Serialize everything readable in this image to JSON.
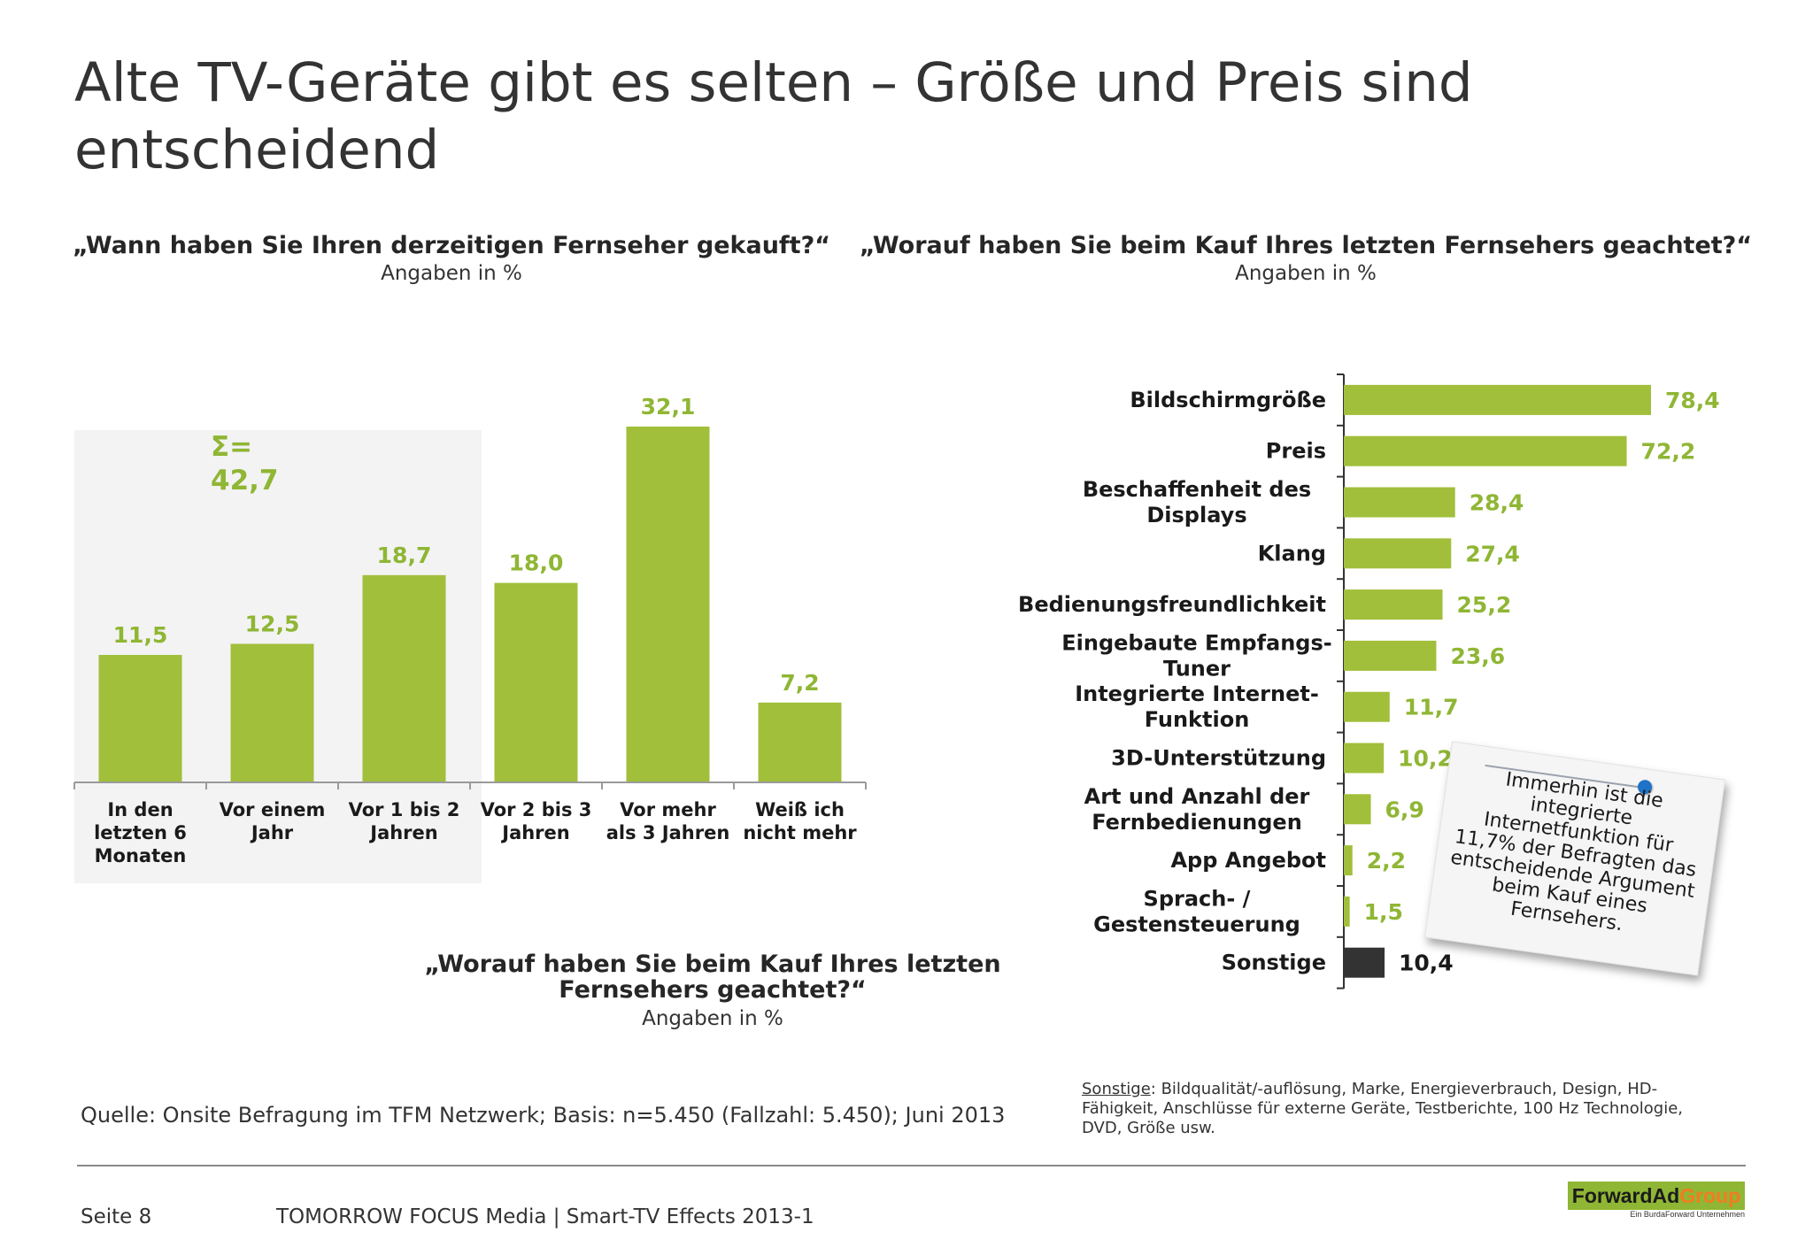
{
  "title": "Alte TV-Geräte gibt es selten – Größe und Preis sind entscheidend",
  "colors": {
    "bar": "#a1bf3a",
    "label": "#8fb634",
    "sonstige": "#333333",
    "highlight_bg": "#f3f3f3"
  },
  "left_chart": {
    "question": "„Wann haben Sie Ihren derzeitigen Fernseher gekauft?“",
    "subtitle": "Angaben in %",
    "sum_label": "Σ=",
    "sum_value": "42,7",
    "value_labels": [
      "11,5",
      "12,5",
      "18,7",
      "18,0",
      "32,1",
      "7,2"
    ],
    "category_lines": [
      [
        "In den",
        "letzten 6",
        "Monaten"
      ],
      [
        "Vor einem",
        "Jahr"
      ],
      [
        "Vor 1 bis 2",
        "Jahren"
      ],
      [
        "Vor 2 bis 3",
        "Jahren"
      ],
      [
        "Vor mehr",
        "als 3 Jahren"
      ],
      [
        "Weiß ich",
        "nicht mehr"
      ]
    ]
  },
  "right_chart": {
    "question": "„Worauf haben Sie beim Kauf Ihres letzten Fernsehers geachtet?“",
    "subtitle": "Angaben in %",
    "value_labels": [
      "78,4",
      "72,2",
      "28,4",
      "27,4",
      "25,2",
      "23,6",
      "11,7",
      "10,2",
      "6,9",
      "2,2",
      "1,5",
      "10,4"
    ],
    "category_lines": [
      [
        "Bildschirmgröße"
      ],
      [
        "Preis"
      ],
      [
        "Beschaffenheit des",
        "Displays"
      ],
      [
        "Klang"
      ],
      [
        "Bedienungsfreundlichkeit"
      ],
      [
        "Eingebaute Empfangs-",
        "Tuner"
      ],
      [
        "Integrierte Internet-",
        "Funktion"
      ],
      [
        "3D-Unterstützung"
      ],
      [
        "Art und Anzahl der",
        "Fernbedienungen"
      ],
      [
        "App Angebot"
      ],
      [
        "Sprach- /",
        "Gestensteuerung"
      ],
      [
        "Sonstige"
      ]
    ]
  },
  "chart_data": [
    {
      "type": "bar",
      "title": "„Wann haben Sie Ihren derzeitigen Fernseher gekauft?“",
      "subtitle": "Angaben in %",
      "categories": [
        "In den letzten 6 Monaten",
        "Vor einem Jahr",
        "Vor 1 bis 2 Jahren",
        "Vor 2 bis 3 Jahren",
        "Vor mehr als 3 Jahren",
        "Weiß ich nicht mehr"
      ],
      "values": [
        11.5,
        12.5,
        18.7,
        18.0,
        32.1,
        7.2
      ],
      "annotation": "Σ= 42,7",
      "ylim": [
        0,
        32.1
      ],
      "grid": false
    },
    {
      "type": "bar",
      "orientation": "horizontal",
      "title": "„Worauf haben Sie beim Kauf Ihres letzten Fernsehers geachtet?“",
      "subtitle": "Angaben in %",
      "categories": [
        "Bildschirmgröße",
        "Preis",
        "Beschaffenheit des Displays",
        "Klang",
        "Bedienungsfreundlichkeit",
        "Eingebaute Empfangs-Tuner",
        "Integrierte Internet-Funktion",
        "3D-Unterstützung",
        "Art und Anzahl der Fernbedienungen",
        "App Angebot",
        "Sprach- / Gestensteuerung",
        "Sonstige"
      ],
      "values": [
        78.4,
        72.2,
        28.4,
        27.4,
        25.2,
        23.6,
        11.7,
        10.2,
        6.9,
        2.2,
        1.5,
        10.4
      ],
      "xlim": [
        0,
        78.4
      ],
      "grid": false
    }
  ],
  "lower_question": "„Worauf haben Sie beim Kauf Ihres letzten Fernsehers geachtet?“",
  "lower_subtitle": "Angaben in %",
  "note_text": "Immerhin ist die integrierte Internetfunktion für 11,7% der Befragten das entscheidende Argument beim Kauf eines Fernsehers.",
  "source": "Quelle: Onsite Befragung im TFM Netzwerk; Basis: n=5.450 (Fallzahl: 5.450); Juni 2013",
  "footnote_label": "Sonstige",
  "footnote_text": ": Bildqualität/-auflösung, Marke, Energieverbrauch, Design, HD-Fähigkeit, Anschlüsse für externe Geräte, Testberichte, 100 Hz Technologie, DVD, Größe usw.",
  "footer": {
    "page": "Seite 8",
    "company": "TOMORROW FOCUS Media  |  Smart-TV Effects 2013-1",
    "logo_main": "ForwardAd",
    "logo_accent": "Group",
    "logo_sub": "Ein BurdaForward Unternehmen"
  }
}
